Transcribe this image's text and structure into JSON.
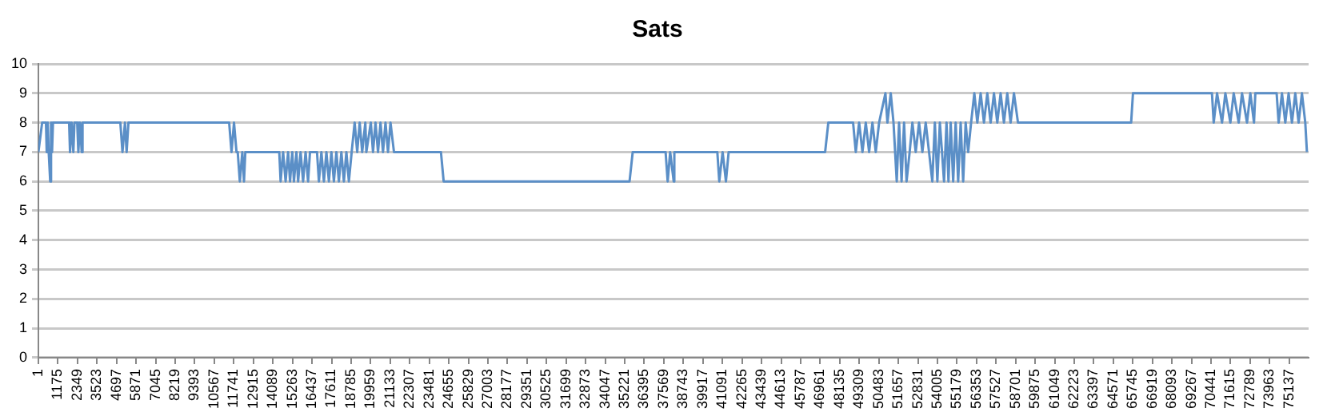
{
  "chart_data": {
    "type": "line",
    "title": "Sats",
    "legend": false,
    "grid": "y",
    "marker": "none",
    "line_style": "solid",
    "xlim": [
      1,
      76300
    ],
    "ylim": [
      0,
      10
    ],
    "yticks": [
      0,
      1,
      2,
      3,
      4,
      5,
      6,
      7,
      8,
      9,
      10
    ],
    "xticks": [
      1,
      1175,
      2349,
      3523,
      4697,
      5871,
      7045,
      8219,
      9393,
      10567,
      11741,
      12915,
      14089,
      15263,
      16437,
      17611,
      18785,
      19959,
      21133,
      22307,
      23481,
      24655,
      25829,
      27003,
      28177,
      29351,
      30525,
      31699,
      32873,
      34047,
      35221,
      36395,
      37569,
      38743,
      39917,
      41091,
      42265,
      43439,
      44613,
      45787,
      46961,
      48135,
      49309,
      50483,
      51657,
      52831,
      54005,
      55179,
      56353,
      57527,
      58701,
      59875,
      61049,
      62223,
      63397,
      64571,
      65745,
      66919,
      68093,
      69267,
      70441,
      71615,
      72789,
      73963,
      75137
    ],
    "series": [
      {
        "color": "#5b8fc7",
        "x": [
          1,
          225,
          456,
          500,
          560,
          620,
          710,
          760,
          820,
          875,
          1846,
          1900,
          2000,
          2100,
          2166,
          2331,
          2400,
          2500,
          2600,
          2652,
          4923,
          5050,
          5200,
          5300,
          5409,
          11459,
          11600,
          11750,
          11900,
          11973,
          12100,
          12250,
          12350,
          12430,
          14470,
          14550,
          14700,
          14850,
          15000,
          15117,
          15250,
          15350,
          15500,
          15602,
          15750,
          15900,
          16050,
          16200,
          16314,
          16735,
          16850,
          17000,
          17150,
          17300,
          17450,
          17600,
          17750,
          17900,
          18050,
          18200,
          18350,
          18500,
          18650,
          18818,
          18997,
          19150,
          19300,
          19450,
          19638,
          19700,
          19968,
          20100,
          20250,
          20400,
          20550,
          20700,
          20850,
          21000,
          21150,
          21359,
          24180,
          24343,
          35510,
          35700,
          37676,
          37800,
          37950,
          38162,
          38200,
          40783,
          40900,
          41100,
          41300,
          41463,
          47258,
          47450,
          48938,
          49100,
          49300,
          49500,
          49700,
          49900,
          50100,
          50300,
          50500,
          50880,
          51000,
          51200,
          51366,
          51560,
          51700,
          51850,
          52000,
          52150,
          52336,
          52500,
          52700,
          52900,
          53100,
          53300,
          53500,
          53696,
          53850,
          54000,
          54150,
          54279,
          54400,
          54550,
          54667,
          54800,
          54950,
          55100,
          55250,
          55400,
          55550,
          55700,
          55850,
          56026,
          56221,
          56400,
          56600,
          56800,
          57000,
          57200,
          57400,
          57600,
          57800,
          58000,
          58200,
          58400,
          58600,
          58843,
          65640,
          65750,
          70495,
          70600,
          70800,
          71100,
          71300,
          71600,
          71800,
          72100,
          72300,
          72600,
          72800,
          73020,
          73100,
          74380,
          74500,
          74700,
          74900,
          75100,
          75300,
          75500,
          75700,
          75900,
          76100,
          76200
        ],
        "values": [
          7,
          8,
          8,
          7,
          8,
          7,
          6,
          8,
          7,
          8,
          8,
          7,
          8,
          7,
          8,
          8,
          7,
          8,
          7,
          8,
          8,
          7,
          8,
          7,
          8,
          8,
          7,
          8,
          7,
          7,
          6,
          7,
          6,
          7,
          7,
          6,
          7,
          6,
          7,
          6,
          7,
          6,
          7,
          6,
          7,
          6,
          7,
          6,
          7,
          7,
          6,
          7,
          6,
          7,
          6,
          7,
          6,
          7,
          6,
          7,
          6,
          7,
          6,
          7,
          8,
          7,
          8,
          7,
          8,
          7,
          8,
          7,
          8,
          7,
          8,
          7,
          8,
          7,
          8,
          7,
          7,
          6,
          6,
          7,
          7,
          6,
          7,
          6,
          7,
          7,
          6,
          7,
          6,
          7,
          7,
          8,
          8,
          7,
          8,
          7,
          8,
          7,
          8,
          7,
          8,
          9,
          8,
          9,
          8,
          6,
          8,
          6,
          8,
          6,
          7,
          8,
          7,
          8,
          7,
          8,
          7,
          6,
          8,
          6,
          8,
          7,
          6,
          8,
          6,
          8,
          6,
          8,
          6,
          8,
          6,
          8,
          7,
          8,
          9,
          8,
          9,
          8,
          9,
          8,
          9,
          8,
          9,
          8,
          9,
          8,
          9,
          8,
          8,
          9,
          9,
          8,
          9,
          8,
          9,
          8,
          9,
          8,
          9,
          8,
          9,
          8,
          9,
          9,
          8,
          9,
          8,
          9,
          8,
          9,
          8,
          9,
          8,
          7
        ]
      }
    ]
  }
}
